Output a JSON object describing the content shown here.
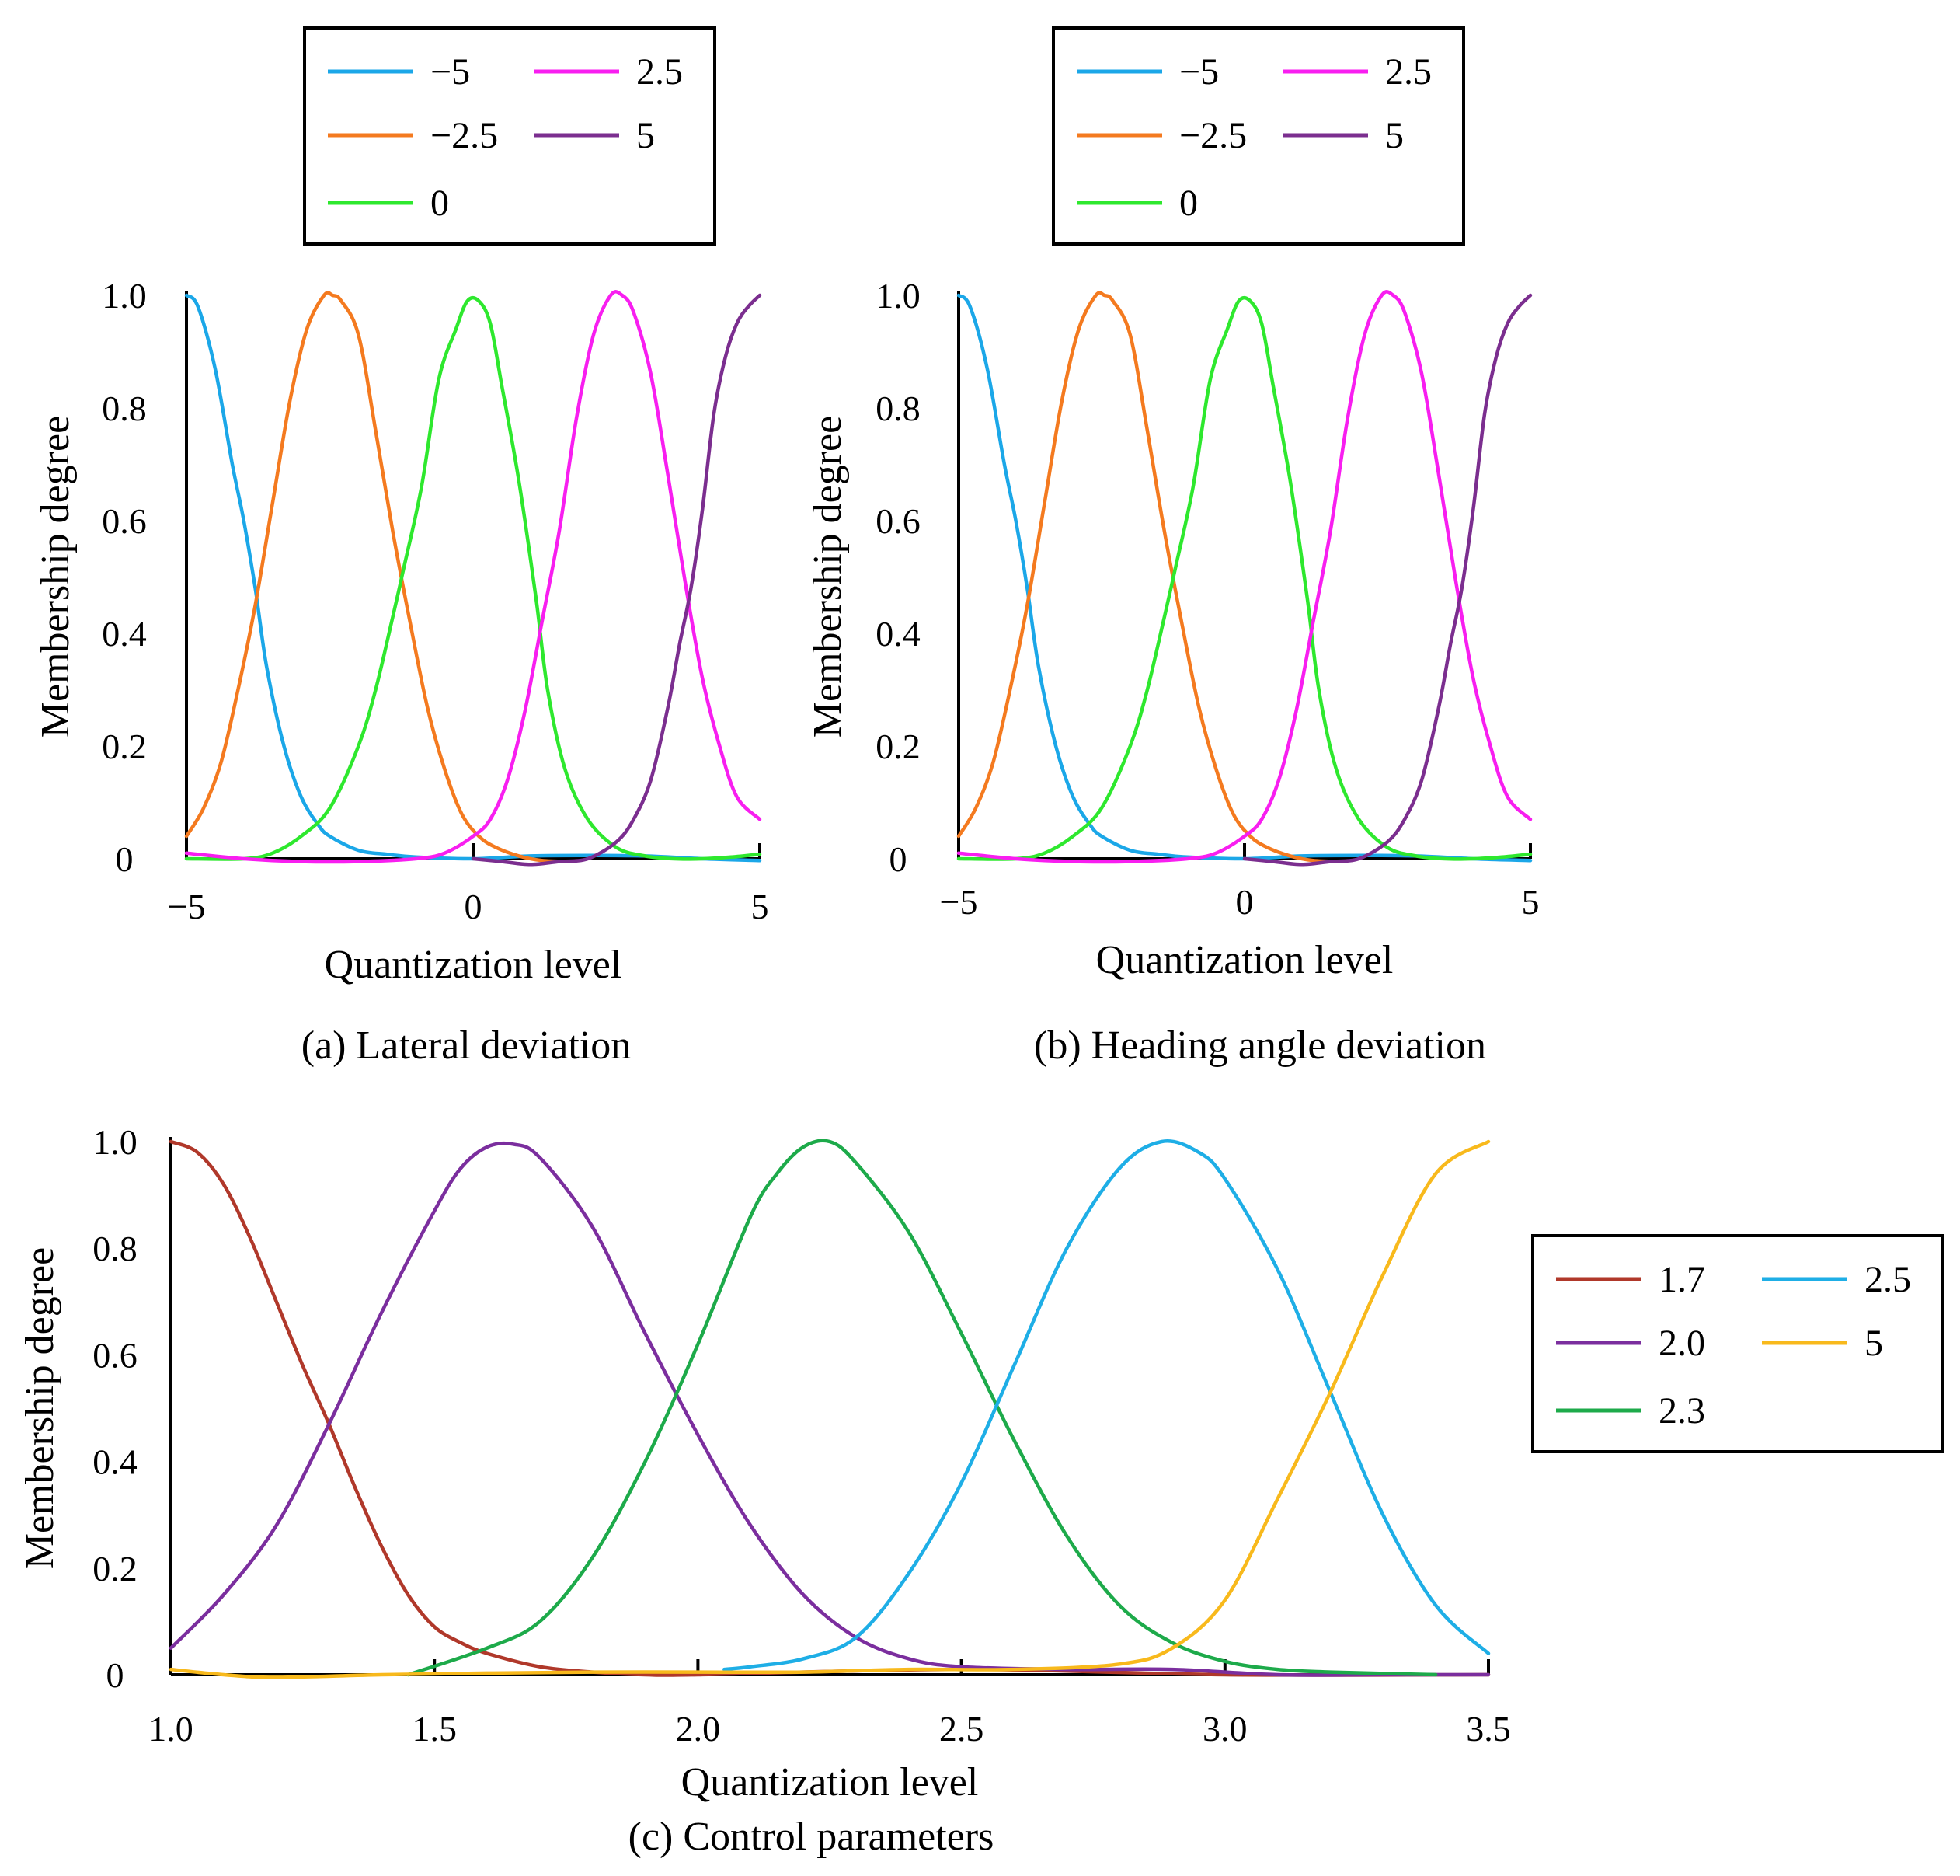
{
  "chart_data": [
    {
      "type": "line",
      "caption": "(a) Lateral deviation",
      "xlabel": "Quantization level",
      "ylabel": "Membership degree",
      "xlim": [
        -5,
        5
      ],
      "ylim": [
        0,
        1.0
      ],
      "xticks": [
        -5,
        0,
        5
      ],
      "xtick_labels": [
        "−5",
        "0",
        "5"
      ],
      "yticks": [
        0,
        0.2,
        0.4,
        0.6,
        0.8,
        1.0
      ],
      "ytick_labels": [
        "0",
        "0.2",
        "0.4",
        "0.6",
        "0.8",
        "1.0"
      ],
      "grid": false,
      "legend_position": "above",
      "series": [
        {
          "name": "−5",
          "color": "#1ba7e8",
          "x": [
            -5,
            -4.8,
            -4.5,
            -4.2,
            -4.0,
            -3.8,
            -3.6,
            -3.3,
            -3.0,
            -2.7,
            -2.5,
            -2.0,
            -1.5,
            -1.0,
            0,
            1,
            2,
            3,
            4,
            5
          ],
          "y": [
            1.0,
            0.98,
            0.87,
            0.7,
            0.6,
            0.48,
            0.34,
            0.2,
            0.11,
            0.06,
            0.04,
            0.015,
            0.008,
            0.003,
            0.0,
            0.005,
            0.006,
            0.005,
            0.0,
            -0.003
          ]
        },
        {
          "name": "−2.5",
          "color": "#f47a1f",
          "x": [
            -5,
            -4.7,
            -4.4,
            -4.1,
            -3.8,
            -3.5,
            -3.2,
            -2.9,
            -2.6,
            -2.45,
            -2.3,
            -2.0,
            -1.7,
            -1.4,
            -1.1,
            -0.8,
            -0.5,
            -0.2,
            0.1,
            0.4,
            0.8,
            1.2,
            1.7
          ],
          "y": [
            0.04,
            0.09,
            0.17,
            0.3,
            0.45,
            0.63,
            0.81,
            0.94,
            1.0,
            1.0,
            0.99,
            0.93,
            0.76,
            0.58,
            0.42,
            0.27,
            0.16,
            0.08,
            0.04,
            0.02,
            0.005,
            -0.003,
            -0.005
          ]
        },
        {
          "name": "0",
          "color": "#2ee82e",
          "x": [
            -5,
            -4,
            -3.5,
            -3.0,
            -2.5,
            -2.0,
            -1.7,
            -1.4,
            -1.2,
            -0.9,
            -0.6,
            -0.3,
            -0.1,
            0.1,
            0.3,
            0.5,
            0.8,
            1.1,
            1.3,
            1.6,
            2.0,
            2.5,
            3.0,
            3.5,
            4.0,
            4.5,
            5.0
          ],
          "y": [
            0.0,
            0.0,
            0.01,
            0.04,
            0.09,
            0.2,
            0.3,
            0.43,
            0.52,
            0.66,
            0.85,
            0.94,
            0.99,
            0.99,
            0.95,
            0.84,
            0.67,
            0.46,
            0.3,
            0.16,
            0.07,
            0.02,
            0.005,
            0.0,
            0.0,
            0.003,
            0.008
          ]
        },
        {
          "name": "2.5",
          "color": "#f81ef0",
          "x": [
            -5,
            -4,
            -3,
            -2,
            -1,
            -0.5,
            0,
            0.3,
            0.6,
            0.9,
            1.2,
            1.5,
            1.8,
            2.1,
            2.4,
            2.6,
            2.8,
            3.1,
            3.4,
            3.7,
            4.0,
            4.3,
            4.6,
            5.0
          ],
          "y": [
            0.01,
            0.0,
            -0.005,
            -0.005,
            0.0,
            0.01,
            0.04,
            0.07,
            0.14,
            0.26,
            0.42,
            0.58,
            0.78,
            0.93,
            1.0,
            1.0,
            0.97,
            0.86,
            0.68,
            0.49,
            0.32,
            0.2,
            0.11,
            0.07
          ]
        },
        {
          "name": "5",
          "color": "#7b2e8f",
          "x": [
            0,
            0.5,
            1.0,
            1.5,
            2.0,
            2.5,
            2.8,
            3.1,
            3.4,
            3.6,
            3.8,
            4.0,
            4.2,
            4.4,
            4.6,
            4.8,
            5.0
          ],
          "y": [
            0.0,
            -0.005,
            -0.01,
            -0.005,
            0.0,
            0.03,
            0.07,
            0.14,
            0.27,
            0.38,
            0.48,
            0.62,
            0.79,
            0.89,
            0.95,
            0.98,
            1.0
          ]
        }
      ]
    },
    {
      "type": "line",
      "caption": "(b) Heading angle deviation",
      "xlabel": "Quantization level",
      "ylabel": "Membership degree",
      "xlim": [
        -5,
        5
      ],
      "ylim": [
        0,
        1.0
      ],
      "xticks": [
        -5,
        0,
        5
      ],
      "xtick_labels": [
        "−5",
        "0",
        "5"
      ],
      "yticks": [
        0,
        0.2,
        0.4,
        0.6,
        0.8,
        1.0
      ],
      "ytick_labels": [
        "0",
        "0.2",
        "0.4",
        "0.6",
        "0.8",
        "1.0"
      ],
      "grid": false,
      "legend_position": "above",
      "series": [
        {
          "name": "−5",
          "color": "#1ba7e8",
          "x": [
            -5,
            -4.8,
            -4.5,
            -4.2,
            -4.0,
            -3.8,
            -3.6,
            -3.3,
            -3.0,
            -2.7,
            -2.5,
            -2.0,
            -1.5,
            -1.0,
            0,
            1,
            2,
            3,
            4,
            5
          ],
          "y": [
            1.0,
            0.98,
            0.87,
            0.7,
            0.6,
            0.48,
            0.34,
            0.2,
            0.11,
            0.06,
            0.04,
            0.015,
            0.008,
            0.003,
            0.0,
            0.005,
            0.006,
            0.005,
            0.0,
            -0.003
          ]
        },
        {
          "name": "−2.5",
          "color": "#f47a1f",
          "x": [
            -5,
            -4.7,
            -4.4,
            -4.1,
            -3.8,
            -3.5,
            -3.2,
            -2.9,
            -2.6,
            -2.45,
            -2.3,
            -2.0,
            -1.7,
            -1.4,
            -1.1,
            -0.8,
            -0.5,
            -0.2,
            0.1,
            0.4,
            0.8,
            1.2,
            1.7
          ],
          "y": [
            0.04,
            0.09,
            0.17,
            0.3,
            0.45,
            0.63,
            0.81,
            0.94,
            1.0,
            1.0,
            0.99,
            0.93,
            0.76,
            0.58,
            0.42,
            0.27,
            0.16,
            0.08,
            0.04,
            0.02,
            0.005,
            -0.003,
            -0.005
          ]
        },
        {
          "name": "0",
          "color": "#2ee82e",
          "x": [
            -5,
            -4,
            -3.5,
            -3.0,
            -2.5,
            -2.0,
            -1.7,
            -1.4,
            -1.2,
            -0.9,
            -0.6,
            -0.3,
            -0.1,
            0.1,
            0.3,
            0.5,
            0.8,
            1.1,
            1.3,
            1.6,
            2.0,
            2.5,
            3.0,
            3.5,
            4.0,
            4.5,
            5.0
          ],
          "y": [
            0.0,
            0.0,
            0.01,
            0.04,
            0.09,
            0.2,
            0.3,
            0.43,
            0.52,
            0.66,
            0.85,
            0.94,
            0.99,
            0.99,
            0.95,
            0.84,
            0.67,
            0.46,
            0.3,
            0.16,
            0.07,
            0.02,
            0.005,
            0.0,
            0.0,
            0.003,
            0.008
          ]
        },
        {
          "name": "2.5",
          "color": "#f81ef0",
          "x": [
            -5,
            -4,
            -3,
            -2,
            -1,
            -0.5,
            0,
            0.3,
            0.6,
            0.9,
            1.2,
            1.5,
            1.8,
            2.1,
            2.4,
            2.6,
            2.8,
            3.1,
            3.4,
            3.7,
            4.0,
            4.3,
            4.6,
            5.0
          ],
          "y": [
            0.01,
            0.0,
            -0.005,
            -0.005,
            0.0,
            0.01,
            0.04,
            0.07,
            0.14,
            0.26,
            0.42,
            0.58,
            0.78,
            0.93,
            1.0,
            1.0,
            0.97,
            0.86,
            0.68,
            0.49,
            0.32,
            0.2,
            0.11,
            0.07
          ]
        },
        {
          "name": "5",
          "color": "#7b2e8f",
          "x": [
            0,
            0.5,
            1.0,
            1.5,
            2.0,
            2.5,
            2.8,
            3.1,
            3.4,
            3.6,
            3.8,
            4.0,
            4.2,
            4.4,
            4.6,
            4.8,
            5.0
          ],
          "y": [
            0.0,
            -0.005,
            -0.01,
            -0.005,
            0.0,
            0.03,
            0.07,
            0.14,
            0.27,
            0.38,
            0.48,
            0.62,
            0.79,
            0.89,
            0.95,
            0.98,
            1.0
          ]
        }
      ]
    },
    {
      "type": "line",
      "caption": "(c) Control parameters",
      "xlabel": "Quantization level",
      "ylabel": "Membership degree",
      "xlim": [
        1.0,
        3.5
      ],
      "ylim": [
        0,
        1.0
      ],
      "xticks": [
        1.0,
        1.5,
        2.0,
        2.5,
        3.0,
        3.5
      ],
      "xtick_labels": [
        "1.0",
        "1.5",
        "2.0",
        "2.5",
        "3.0",
        "3.5"
      ],
      "yticks": [
        0,
        0.2,
        0.4,
        0.6,
        0.8,
        1.0
      ],
      "ytick_labels": [
        "0",
        "0.2",
        "0.4",
        "0.6",
        "0.8",
        "1.0"
      ],
      "grid": false,
      "legend_position": "right",
      "series": [
        {
          "name": "1.7",
          "color": "#b0382a",
          "x": [
            1.0,
            1.05,
            1.1,
            1.15,
            1.2,
            1.25,
            1.3,
            1.35,
            1.4,
            1.45,
            1.5,
            1.55,
            1.6,
            1.7,
            1.8,
            1.9,
            2.0,
            2.5,
            3.0,
            3.5
          ],
          "y": [
            1.0,
            0.98,
            0.92,
            0.82,
            0.7,
            0.58,
            0.47,
            0.35,
            0.24,
            0.15,
            0.09,
            0.06,
            0.04,
            0.015,
            0.005,
            0.0,
            0.0,
            0.01,
            0.0,
            0.0
          ]
        },
        {
          "name": "2.0",
          "color": "#7b2e9e",
          "x": [
            1.0,
            1.1,
            1.2,
            1.3,
            1.4,
            1.5,
            1.55,
            1.6,
            1.65,
            1.7,
            1.8,
            1.9,
            2.0,
            2.1,
            2.2,
            2.3,
            2.4,
            2.5,
            2.7,
            2.9,
            3.1,
            3.3,
            3.5
          ],
          "y": [
            0.05,
            0.15,
            0.28,
            0.47,
            0.68,
            0.87,
            0.95,
            0.99,
            0.995,
            0.97,
            0.84,
            0.64,
            0.45,
            0.28,
            0.15,
            0.07,
            0.03,
            0.015,
            0.01,
            0.01,
            0.0,
            0.0,
            0.0
          ]
        },
        {
          "name": "2.3",
          "color": "#1daa4a",
          "x": [
            1.45,
            1.6,
            1.7,
            1.8,
            1.9,
            2.0,
            2.1,
            2.15,
            2.2,
            2.25,
            2.3,
            2.4,
            2.5,
            2.6,
            2.7,
            2.8,
            2.9,
            3.0,
            3.1,
            3.2,
            3.4
          ],
          "y": [
            0.0,
            0.05,
            0.1,
            0.22,
            0.4,
            0.62,
            0.86,
            0.94,
            0.99,
            1.0,
            0.96,
            0.83,
            0.64,
            0.44,
            0.26,
            0.13,
            0.06,
            0.025,
            0.01,
            0.005,
            0.0
          ]
        },
        {
          "name": "2.5",
          "color": "#1eaee6",
          "x": [
            2.05,
            2.1,
            2.2,
            2.3,
            2.4,
            2.5,
            2.6,
            2.7,
            2.8,
            2.88,
            2.95,
            3.0,
            3.1,
            3.2,
            3.3,
            3.4,
            3.5
          ],
          "y": [
            0.01,
            0.015,
            0.03,
            0.07,
            0.19,
            0.36,
            0.58,
            0.8,
            0.95,
            1.0,
            0.98,
            0.93,
            0.76,
            0.53,
            0.3,
            0.13,
            0.04
          ]
        },
        {
          "name": "5",
          "color": "#f8b91c",
          "x": [
            1.0,
            1.1,
            1.2,
            1.4,
            1.6,
            1.8,
            2.0,
            2.2,
            2.4,
            2.6,
            2.8,
            2.9,
            3.0,
            3.1,
            3.2,
            3.3,
            3.4,
            3.5
          ],
          "y": [
            0.01,
            0.0,
            -0.005,
            0.0,
            0.003,
            0.005,
            0.005,
            0.005,
            0.01,
            0.01,
            0.02,
            0.05,
            0.14,
            0.33,
            0.53,
            0.75,
            0.94,
            1.0
          ]
        }
      ]
    }
  ]
}
